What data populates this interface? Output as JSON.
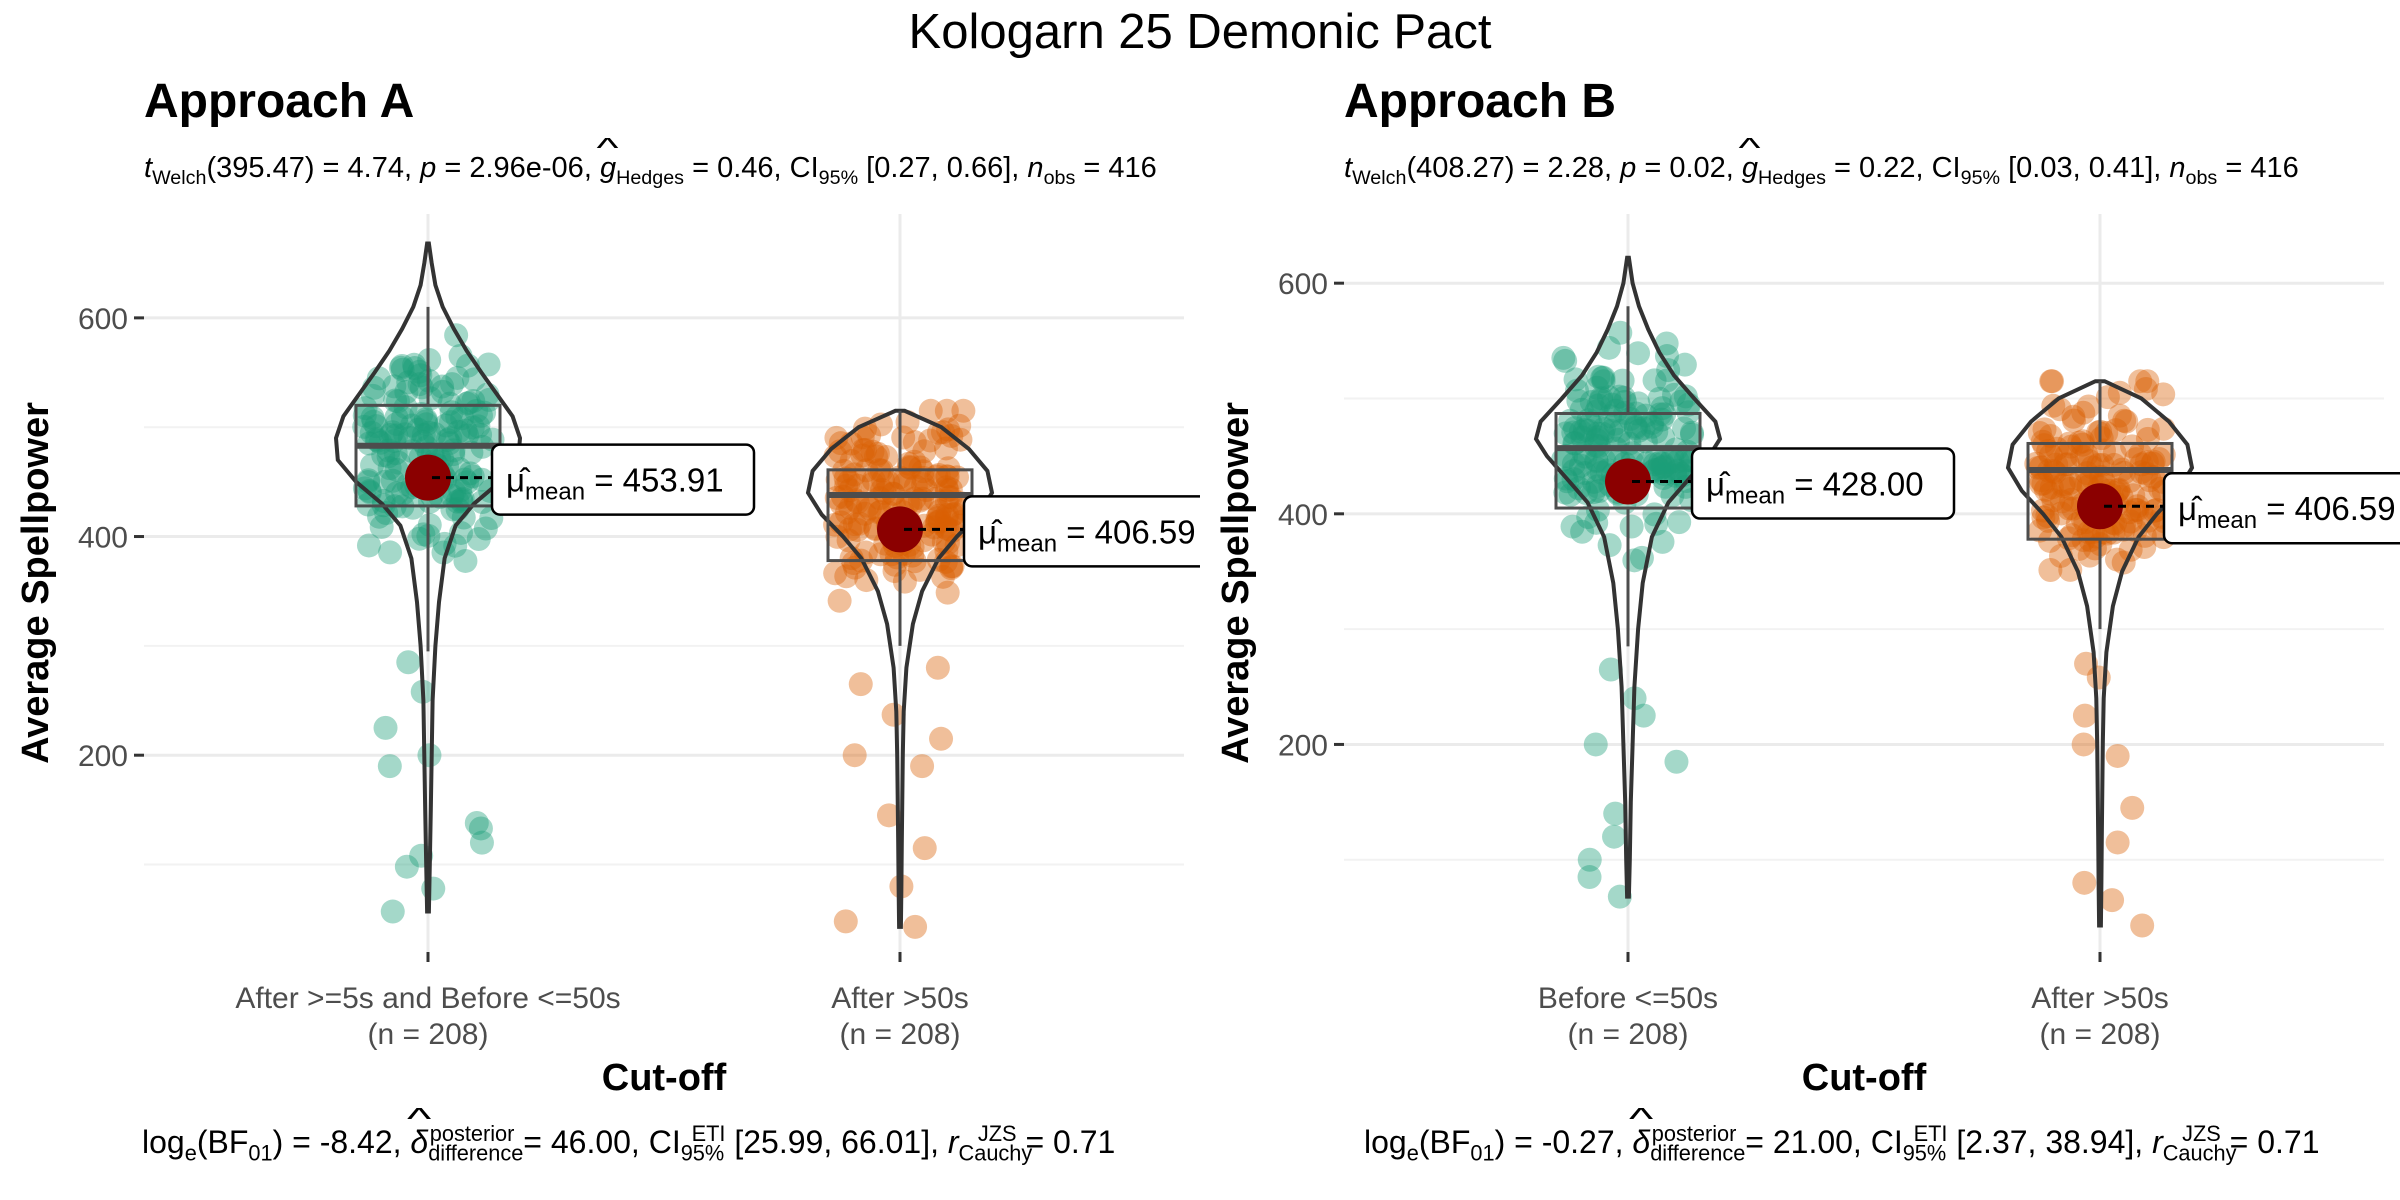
{
  "figure_title": "Kologarn 25 Demonic Pact",
  "colors": {
    "group1": "#1B9E77",
    "group2": "#D95F02",
    "mean_point": "#8B0000",
    "grid": "#EBEBEB",
    "outline": "#333333"
  },
  "chart_data": [
    {
      "type": "violin-box-scatter",
      "title": "Approach A",
      "stats": {
        "df": "395.47",
        "t": "4.74",
        "p": "2.96e-06",
        "g": "0.46",
        "ci_low": "0.27",
        "ci_high": "0.66",
        "n_obs": "416"
      },
      "bayes": {
        "log_bf": "-8.42",
        "delta": "46.00",
        "ci_low": "25.99",
        "ci_high": "66.01",
        "r": "0.71"
      },
      "xlabel": "Cut-off",
      "ylabel": "Average Spellpower",
      "ylim": [
        20,
        695
      ],
      "yticks": [
        200,
        400,
        600
      ],
      "groups": [
        {
          "label": "After >=5s and Before <=50s",
          "n_label": "(n = 208)",
          "color": "#1B9E77",
          "mean": 453.91,
          "mean_label": "453.91",
          "q1": 428,
          "median": 483,
          "q3": 520,
          "whisker_low": 295,
          "whisker_high": 610,
          "min": 57,
          "max": 668,
          "density": [
            [
              57,
              0.01
            ],
            [
              100,
              0.02
            ],
            [
              150,
              0.03
            ],
            [
              200,
              0.04
            ],
            [
              250,
              0.05
            ],
            [
              300,
              0.08
            ],
            [
              340,
              0.12
            ],
            [
              380,
              0.18
            ],
            [
              410,
              0.3
            ],
            [
              430,
              0.5
            ],
            [
              450,
              0.78
            ],
            [
              470,
              0.98
            ],
            [
              490,
              1.0
            ],
            [
              510,
              0.92
            ],
            [
              530,
              0.75
            ],
            [
              550,
              0.58
            ],
            [
              570,
              0.42
            ],
            [
              590,
              0.28
            ],
            [
              610,
              0.16
            ],
            [
              630,
              0.08
            ],
            [
              650,
              0.04
            ],
            [
              668,
              0.01
            ]
          ],
          "outliers": [
            57,
            78,
            98,
            108,
            120,
            133,
            138,
            190,
            200,
            225,
            258,
            285
          ]
        },
        {
          "label": "After >50s",
          "n_label": "(n = 208)",
          "color": "#D95F02",
          "mean": 406.59,
          "mean_label": "406.59",
          "q1": 378,
          "median": 438,
          "q3": 461,
          "whisker_low": 300,
          "whisker_high": 515,
          "min": 43,
          "max": 515,
          "density": [
            [
              43,
              0.01
            ],
            [
              80,
              0.015
            ],
            [
              120,
              0.02
            ],
            [
              160,
              0.025
            ],
            [
              200,
              0.03
            ],
            [
              240,
              0.04
            ],
            [
              280,
              0.07
            ],
            [
              320,
              0.14
            ],
            [
              350,
              0.24
            ],
            [
              380,
              0.42
            ],
            [
              400,
              0.62
            ],
            [
              420,
              0.85
            ],
            [
              440,
              1.0
            ],
            [
              460,
              0.95
            ],
            [
              480,
              0.75
            ],
            [
              500,
              0.45
            ],
            [
              515,
              0.05
            ]
          ],
          "outliers": [
            43,
            48,
            80,
            115,
            145,
            190,
            200,
            215,
            237,
            265,
            280
          ]
        }
      ]
    },
    {
      "type": "violin-box-scatter",
      "title": "Approach B",
      "stats": {
        "df": "408.27",
        "t": "2.28",
        "p": "0.02",
        "g": "0.22",
        "ci_low": "0.03",
        "ci_high": "0.41",
        "n_obs": "416"
      },
      "bayes": {
        "log_bf": "-0.27",
        "delta": "21.00",
        "ci_low": "2.37",
        "ci_high": "38.94",
        "r": "0.71"
      },
      "xlabel": "Cut-off",
      "ylabel": "Average Spellpower",
      "ylim": [
        20,
        660
      ],
      "yticks": [
        200,
        400,
        600
      ],
      "groups": [
        {
          "label": "Before <=50s",
          "n_label": "(n = 208)",
          "color": "#1B9E77",
          "mean": 428.0,
          "mean_label": "428.00",
          "q1": 405,
          "median": 457,
          "q3": 487,
          "whisker_low": 285,
          "whisker_high": 580,
          "min": 68,
          "max": 622,
          "density": [
            [
              68,
              0.01
            ],
            [
              100,
              0.02
            ],
            [
              150,
              0.03
            ],
            [
              200,
              0.05
            ],
            [
              250,
              0.07
            ],
            [
              300,
              0.11
            ],
            [
              340,
              0.16
            ],
            [
              380,
              0.26
            ],
            [
              410,
              0.44
            ],
            [
              430,
              0.66
            ],
            [
              450,
              0.88
            ],
            [
              465,
              1.0
            ],
            [
              480,
              0.95
            ],
            [
              500,
              0.72
            ],
            [
              520,
              0.5
            ],
            [
              540,
              0.34
            ],
            [
              560,
              0.22
            ],
            [
              580,
              0.12
            ],
            [
              600,
              0.05
            ],
            [
              622,
              0.01
            ]
          ],
          "outliers": [
            68,
            85,
            100,
            120,
            140,
            185,
            200,
            225,
            240,
            265
          ]
        },
        {
          "label": "After >50s",
          "n_label": "(n = 208)",
          "color": "#D95F02",
          "mean": 406.59,
          "mean_label": "406.59",
          "q1": 378,
          "median": 438,
          "q3": 461,
          "whisker_low": 300,
          "whisker_high": 515,
          "min": 43,
          "max": 515,
          "density": [
            [
              43,
              0.01
            ],
            [
              80,
              0.015
            ],
            [
              120,
              0.02
            ],
            [
              160,
              0.025
            ],
            [
              200,
              0.03
            ],
            [
              240,
              0.04
            ],
            [
              280,
              0.07
            ],
            [
              320,
              0.14
            ],
            [
              350,
              0.24
            ],
            [
              380,
              0.42
            ],
            [
              400,
              0.62
            ],
            [
              420,
              0.85
            ],
            [
              440,
              1.0
            ],
            [
              460,
              0.95
            ],
            [
              480,
              0.75
            ],
            [
              500,
              0.45
            ],
            [
              515,
              0.05
            ]
          ],
          "outliers": [
            43,
            65,
            80,
            115,
            145,
            190,
            200,
            225,
            258,
            270
          ]
        }
      ]
    }
  ]
}
